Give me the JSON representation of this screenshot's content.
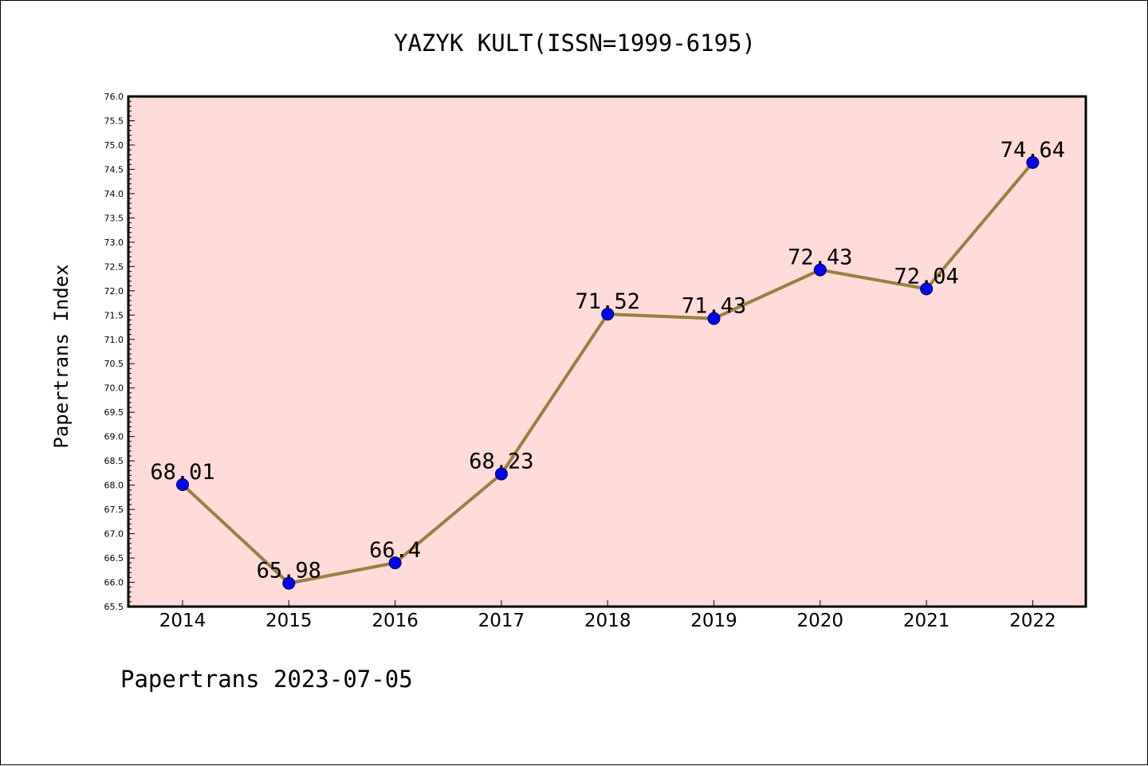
{
  "chart_data": {
    "type": "line",
    "title": "YAZYK KULT(ISSN=1999-6195)",
    "xlabel": "",
    "ylabel": "Papertrans Index",
    "categories": [
      "2014",
      "2015",
      "2016",
      "2017",
      "2018",
      "2019",
      "2020",
      "2021",
      "2022"
    ],
    "series": [
      {
        "values": [
          68.01,
          65.98,
          66.4,
          68.23,
          71.52,
          71.43,
          72.43,
          72.04,
          74.64
        ],
        "data_labels": [
          "68.01",
          "65.98",
          "66.4",
          "68.23",
          "71.52",
          "71.43",
          "72.43",
          "72.04",
          "74.64"
        ],
        "line_color": "#9a8040",
        "marker_color": "#0000ff"
      }
    ],
    "ylim": [
      65.5,
      76.0
    ],
    "yticks": [
      "65.5",
      "66.0",
      "66.5",
      "67.0",
      "67.5",
      "68.0",
      "68.5",
      "69.0",
      "69.5",
      "70.0",
      "70.5",
      "71.0",
      "71.5",
      "72.0",
      "72.5",
      "73.0",
      "73.5",
      "74.0",
      "74.5",
      "75.0",
      "75.5",
      "76.0"
    ],
    "grid": false,
    "plot_background": "#ffdcda"
  },
  "footer": {
    "note": "Papertrans 2023-07-05"
  }
}
